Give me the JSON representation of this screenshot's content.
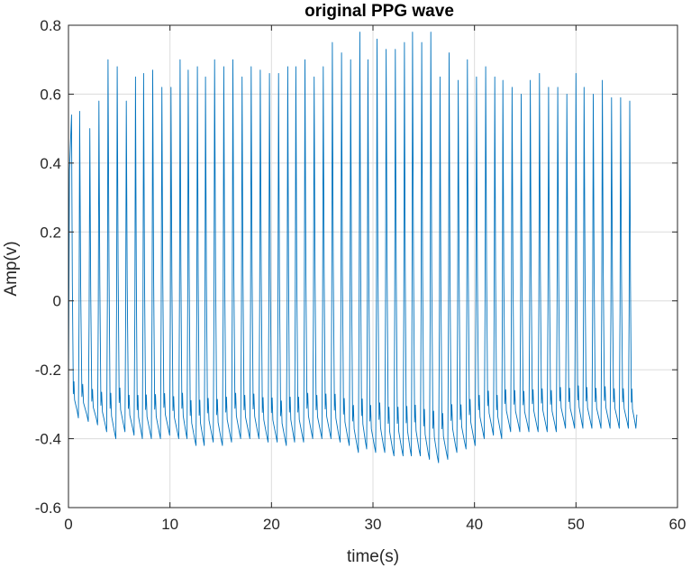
{
  "chart_data": {
    "type": "line",
    "title": "original PPG wave",
    "xlabel": "time(s)",
    "ylabel": "Amp(v)",
    "xlim": [
      0,
      60
    ],
    "ylim": [
      -0.6,
      0.8
    ],
    "xticks": [
      0,
      10,
      20,
      30,
      40,
      50,
      60
    ],
    "xtick_labels": [
      "0",
      "10",
      "20",
      "30",
      "40",
      "50",
      "60"
    ],
    "yticks": [
      -0.6,
      -0.4,
      -0.2,
      0,
      0.2,
      0.4,
      0.6,
      0.8
    ],
    "ytick_labels": [
      "-0.6",
      "-0.4",
      "-0.2",
      "0",
      "0.2",
      "0.4",
      "0.6",
      "0.8"
    ],
    "grid": true,
    "series_color": "#0072BD",
    "series": [
      {
        "beat_times": [
          0.3,
          1.1,
          2.1,
          3.0,
          3.9,
          4.8,
          5.7,
          6.6,
          7.4,
          8.3,
          9.2,
          10.1,
          11.0,
          11.8,
          12.7,
          13.5,
          14.4,
          15.3,
          16.2,
          17.1,
          18.0,
          18.9,
          19.8,
          20.7,
          21.6,
          22.4,
          23.3,
          24.2,
          25.1,
          26.0,
          26.9,
          27.8,
          28.7,
          29.5,
          30.4,
          31.3,
          32.2,
          33.1,
          33.9,
          34.8,
          35.7,
          36.6,
          37.5,
          38.4,
          39.3,
          40.2,
          41.1,
          42.0,
          42.8,
          43.7,
          44.6,
          45.5,
          46.4,
          47.3,
          48.2,
          49.1,
          50.0,
          50.8,
          51.7,
          52.6,
          53.5,
          54.4,
          55.3
        ],
        "peaks": [
          0.54,
          0.55,
          0.5,
          0.58,
          0.7,
          0.68,
          0.58,
          0.65,
          0.66,
          0.67,
          0.62,
          0.62,
          0.7,
          0.67,
          0.68,
          0.65,
          0.7,
          0.68,
          0.7,
          0.65,
          0.68,
          0.67,
          0.66,
          0.66,
          0.68,
          0.68,
          0.7,
          0.65,
          0.68,
          0.75,
          0.72,
          0.7,
          0.78,
          0.7,
          0.76,
          0.73,
          0.73,
          0.75,
          0.78,
          0.75,
          0.78,
          0.65,
          0.72,
          0.64,
          0.7,
          0.65,
          0.68,
          0.65,
          0.64,
          0.62,
          0.6,
          0.64,
          0.66,
          0.62,
          0.62,
          0.6,
          0.66,
          0.62,
          0.6,
          0.64,
          0.59,
          0.59,
          0.58
        ],
        "troughs": [
          -0.33,
          -0.34,
          -0.35,
          -0.36,
          -0.38,
          -0.4,
          -0.38,
          -0.39,
          -0.4,
          -0.4,
          -0.4,
          -0.39,
          -0.4,
          -0.4,
          -0.42,
          -0.42,
          -0.41,
          -0.42,
          -0.41,
          -0.4,
          -0.4,
          -0.4,
          -0.41,
          -0.41,
          -0.42,
          -0.41,
          -0.41,
          -0.4,
          -0.4,
          -0.4,
          -0.41,
          -0.42,
          -0.44,
          -0.43,
          -0.44,
          -0.44,
          -0.45,
          -0.45,
          -0.45,
          -0.45,
          -0.46,
          -0.47,
          -0.46,
          -0.44,
          -0.43,
          -0.42,
          -0.4,
          -0.39,
          -0.4,
          -0.38,
          -0.38,
          -0.38,
          -0.38,
          -0.38,
          -0.38,
          -0.37,
          -0.37,
          -0.37,
          -0.37,
          -0.37,
          -0.37,
          -0.37,
          -0.37
        ],
        "end_time": 56.0,
        "end_value": -0.33
      }
    ]
  }
}
